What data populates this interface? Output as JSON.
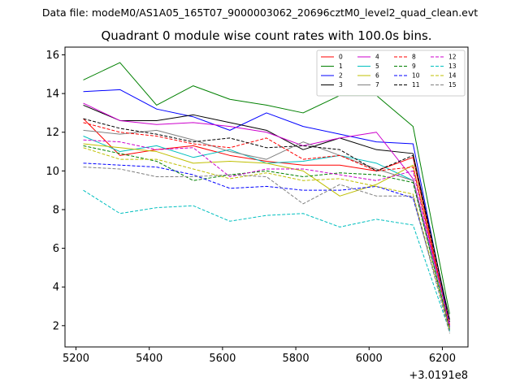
{
  "suptitle": "Data file: modeM0/AS1A05_165T07_9000003062_20696cztM0_level2_quad_clean.evt",
  "chart_data": {
    "type": "line",
    "title": "Quadrant 0 module wise count rates with 100.0s bins.",
    "xlabel": "",
    "ylabel": "",
    "x_offset_label": "+3.0191e8",
    "xlim": [
      5170,
      6270
    ],
    "ylim": [
      0.9,
      16.4
    ],
    "xticks": [
      5200,
      5400,
      5600,
      5800,
      6000,
      6200
    ],
    "yticks": [
      2,
      4,
      6,
      8,
      10,
      12,
      14,
      16
    ],
    "x": [
      5220,
      5320,
      5420,
      5520,
      5620,
      5720,
      5820,
      5920,
      6020,
      6120,
      6220
    ],
    "legend_location": "top-right",
    "series": [
      {
        "name": "0",
        "color": "#ff0000",
        "dash": "solid",
        "values": [
          12.7,
          10.8,
          11.1,
          11.3,
          10.8,
          10.5,
          10.3,
          10.3,
          10.0,
          10.7,
          1.9
        ]
      },
      {
        "name": "1",
        "color": "#008000",
        "dash": "solid",
        "values": [
          14.7,
          15.6,
          13.4,
          14.4,
          13.7,
          13.4,
          13.0,
          13.9,
          13.9,
          12.3,
          2.6
        ]
      },
      {
        "name": "2",
        "color": "#0000ff",
        "dash": "solid",
        "values": [
          14.1,
          14.2,
          13.2,
          12.8,
          12.1,
          13.0,
          12.3,
          11.9,
          11.5,
          11.4,
          2.0
        ]
      },
      {
        "name": "3",
        "color": "#000000",
        "dash": "solid",
        "values": [
          13.4,
          12.6,
          12.6,
          12.9,
          12.5,
          12.1,
          11.1,
          11.7,
          11.1,
          10.9,
          2.3
        ]
      },
      {
        "name": "4",
        "color": "#cc00cc",
        "dash": "solid",
        "values": [
          13.5,
          12.6,
          12.4,
          12.5,
          12.3,
          12.0,
          11.3,
          11.7,
          12.0,
          9.6,
          2.1
        ]
      },
      {
        "name": "5",
        "color": "#00bfbf",
        "dash": "solid",
        "values": [
          11.8,
          11.0,
          11.3,
          10.7,
          11.1,
          10.4,
          10.5,
          10.8,
          10.4,
          9.5,
          1.8
        ]
      },
      {
        "name": "6",
        "color": "#bfbf00",
        "dash": "solid",
        "values": [
          11.4,
          11.2,
          11.0,
          10.4,
          10.5,
          10.4,
          10.0,
          8.7,
          9.3,
          10.3,
          1.9
        ]
      },
      {
        "name": "7",
        "color": "#808080",
        "dash": "solid",
        "values": [
          12.1,
          11.9,
          12.1,
          11.6,
          11.0,
          10.6,
          11.5,
          10.8,
          10.1,
          9.5,
          1.7
        ]
      },
      {
        "name": "8",
        "color": "#ff0000",
        "dash": "dashed",
        "values": [
          12.5,
          12.0,
          11.8,
          11.4,
          11.2,
          11.7,
          10.6,
          10.8,
          10.0,
          10.2,
          2.0
        ]
      },
      {
        "name": "9",
        "color": "#008000",
        "dash": "dashed",
        "values": [
          11.3,
          10.9,
          10.5,
          9.5,
          9.8,
          10.0,
          9.7,
          9.9,
          9.8,
          9.4,
          1.8
        ]
      },
      {
        "name": "10",
        "color": "#0000ff",
        "dash": "dashed",
        "values": [
          10.4,
          10.3,
          10.2,
          9.8,
          9.1,
          9.2,
          9.0,
          9.0,
          9.2,
          8.6,
          1.9
        ]
      },
      {
        "name": "11",
        "color": "#000000",
        "dash": "dashed",
        "values": [
          12.7,
          12.2,
          11.9,
          11.5,
          11.7,
          11.2,
          11.3,
          11.1,
          10.0,
          10.8,
          2.2
        ]
      },
      {
        "name": "12",
        "color": "#cc00cc",
        "dash": "dashed",
        "values": [
          11.6,
          11.5,
          11.1,
          11.2,
          9.7,
          10.1,
          10.1,
          9.8,
          9.5,
          10.0,
          2.0
        ]
      },
      {
        "name": "13",
        "color": "#00bfbf",
        "dash": "dashed",
        "values": [
          9.0,
          7.8,
          8.1,
          8.2,
          7.4,
          7.7,
          7.8,
          7.1,
          7.5,
          7.2,
          1.7
        ]
      },
      {
        "name": "14",
        "color": "#bfbf00",
        "dash": "dashed",
        "values": [
          11.2,
          10.6,
          10.6,
          10.1,
          9.6,
          9.9,
          9.5,
          9.6,
          9.2,
          8.8,
          1.8
        ]
      },
      {
        "name": "15",
        "color": "#808080",
        "dash": "dashed",
        "values": [
          10.2,
          10.1,
          9.7,
          9.7,
          9.8,
          9.7,
          8.3,
          9.3,
          8.7,
          8.7,
          1.6
        ]
      }
    ]
  }
}
